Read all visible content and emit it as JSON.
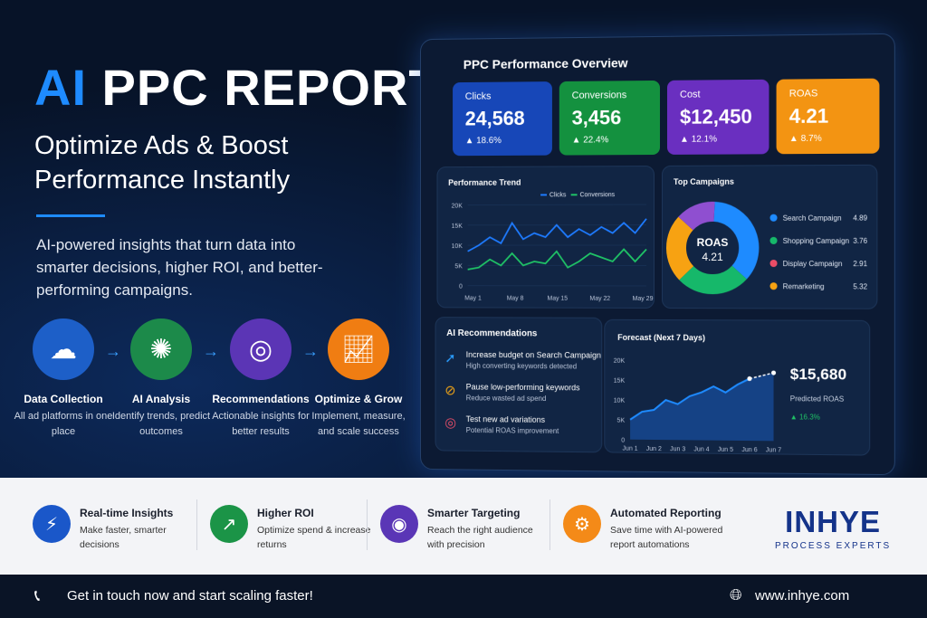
{
  "headline": {
    "accent": "AI",
    "rest": " PPC REPORTS",
    "subtitle": "Optimize Ads & Boost Performance Instantly",
    "paragraph": "AI-powered insights that turn data into smarter decisions, higher ROI, and better-performing campaigns."
  },
  "steps": [
    {
      "icon": "cloud-upload-icon",
      "title": "Data Collection",
      "desc": "All ad platforms in one place",
      "color": "#1d5fc8"
    },
    {
      "icon": "brain-icon",
      "title": "AI Analysis",
      "desc": "Identify trends, predict outcomes",
      "color": "#1c8a4a"
    },
    {
      "icon": "target-icon",
      "title": "Recommendations",
      "desc": "Actionable insights for better results",
      "color": "#5b35b5"
    },
    {
      "icon": "growth-chart-icon",
      "title": "Optimize & Grow",
      "desc": "Implement, measure, and scale success",
      "color": "#f07d12"
    }
  ],
  "dashboard": {
    "title": "PPC Performance Overview",
    "kpis": [
      {
        "label": "Clicks",
        "value": "24,568",
        "change": "18.6%",
        "color": "#1747b8"
      },
      {
        "label": "Conversions",
        "value": "3,456",
        "change": "22.4%",
        "color": "#14913f"
      },
      {
        "label": "Cost",
        "value": "$12,450",
        "change": "12.1%",
        "color": "#6a2fc0"
      },
      {
        "label": "ROAS",
        "value": "4.21",
        "change": "8.7%",
        "color": "#f39412"
      }
    ],
    "recommendations_title": "AI Recommendations",
    "recommendations": [
      {
        "icon": "rocket-icon",
        "title": "Increase budget on Search Campaign",
        "desc": "High converting keywords detected",
        "color": "#2a9dff"
      },
      {
        "icon": "pause-icon",
        "title": "Pause low-performing keywords",
        "desc": "Reduce wasted ad spend",
        "color": "#f2a516"
      },
      {
        "icon": "target-icon",
        "title": "Test new ad variations",
        "desc": "Potential ROAS improvement",
        "color": "#f0506a"
      }
    ]
  },
  "chart_data": [
    {
      "type": "line",
      "title": "Performance Trend",
      "ylim": [
        0,
        20000
      ],
      "yticks": [
        "0",
        "5K",
        "10K",
        "15K",
        "20K"
      ],
      "xticks": [
        "May 1",
        "May 8",
        "May 15",
        "May 22",
        "May 29"
      ],
      "grid": true,
      "legend": "top-right",
      "series": [
        {
          "name": "Clicks",
          "color": "#1e7bff",
          "values": [
            8500,
            10000,
            12000,
            10500,
            15500,
            11500,
            13000,
            12000,
            15000,
            12000,
            14000,
            12500,
            14500,
            13000,
            15500,
            13000,
            16500
          ]
        },
        {
          "name": "Conversions",
          "color": "#1fc266",
          "values": [
            4000,
            4500,
            6500,
            5000,
            8000,
            5000,
            6000,
            5500,
            8500,
            4500,
            6000,
            8000,
            7000,
            6000,
            9000,
            6000,
            9000
          ]
        }
      ]
    },
    {
      "type": "pie",
      "title": "Top Campaigns",
      "center_label": "ROAS",
      "center_value": "4.21",
      "slices": [
        {
          "name": "Search Campaign",
          "value": "4.89",
          "share": 36,
          "color": "#1e8bff"
        },
        {
          "name": "Shopping Campaign",
          "value": "3.76",
          "share": 26,
          "color": "#16b86a"
        },
        {
          "name": "Display Campaign",
          "value": "2.91",
          "share": 14,
          "color": "#8f4fd0",
          "legend_color": "#ea4d67"
        },
        {
          "name": "Remarketing",
          "value": "5.32",
          "share": 24,
          "color": "#f7a212"
        }
      ]
    },
    {
      "type": "area",
      "title": "Forecast (Next 7 Days)",
      "ylim": [
        0,
        20000
      ],
      "yticks": [
        "0",
        "5K",
        "10K",
        "15K",
        "20K"
      ],
      "xticks": [
        "Jun 1",
        "Jun 2",
        "Jun 3",
        "Jun 4",
        "Jun 5",
        "Jun 6",
        "Jun 7"
      ],
      "x": [
        1,
        1.5,
        2,
        2.5,
        3,
        3.5,
        4,
        4.5,
        5,
        5.5,
        6,
        7
      ],
      "values": [
        5000,
        7000,
        7500,
        10000,
        9000,
        11000,
        12000,
        13500,
        12000,
        14000,
        15500,
        17000
      ],
      "forecast_from": 6,
      "value_label": "$15,680",
      "value_caption": "Predicted ROAS",
      "change": "16.3%"
    }
  ],
  "features": [
    {
      "icon": "lightning-icon",
      "title": "Real-time Insights",
      "desc": "Make faster, smarter decisions",
      "color": "#1a57c9"
    },
    {
      "icon": "trend-up-icon",
      "title": "Higher ROI",
      "desc": "Optimize spend & increase returns",
      "color": "#1b9447"
    },
    {
      "icon": "user-target-icon",
      "title": "Smarter Targeting",
      "desc": "Reach the right audience with precision",
      "color": "#5a36b6"
    },
    {
      "icon": "gear-icon",
      "title": "Automated Reporting",
      "desc": "Save time with AI-powered report automations",
      "color": "#f48a18"
    }
  ],
  "logo": {
    "name": "INHYE",
    "tagline": "PROCESS EXPERTS",
    "color": "#14338a"
  },
  "footer": {
    "cta": "Get in touch now and start scaling faster!",
    "website": "www.inhye.com"
  }
}
